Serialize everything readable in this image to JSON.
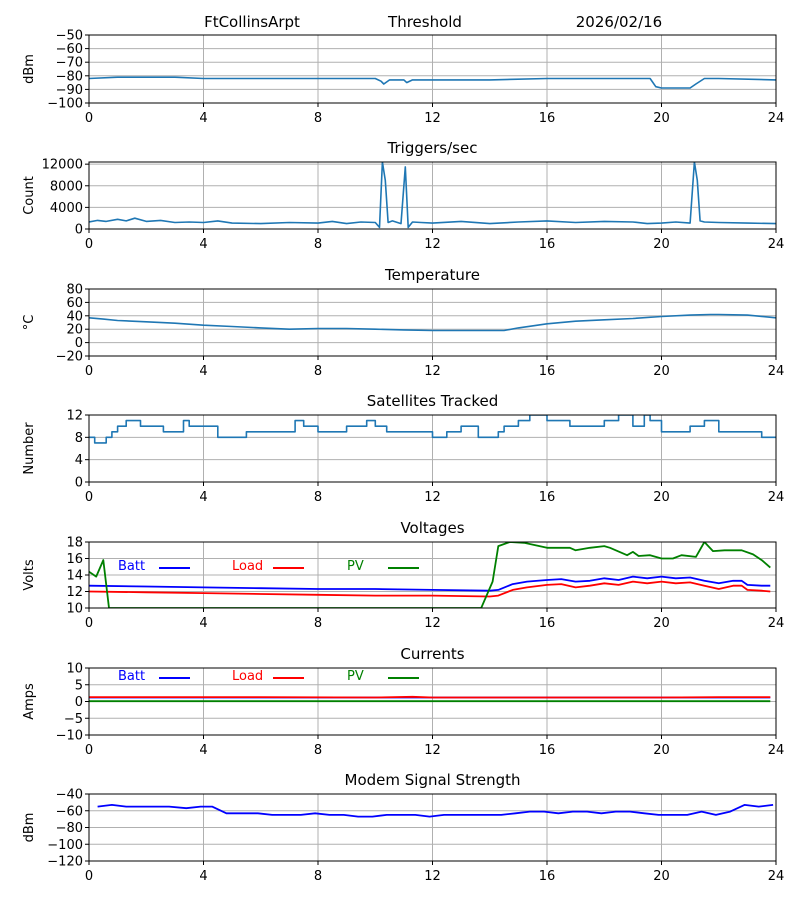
{
  "header": {
    "station": "FtCollinsArpt",
    "metric": "Threshold",
    "date": "2026/02/16"
  },
  "colors": {
    "default_line": "#1f77b4",
    "batt": "#0000ff",
    "load": "#ff0000",
    "pv": "#008000",
    "grid": "#b0b0b0"
  },
  "chart_data": [
    {
      "id": "threshold",
      "type": "line",
      "title": "",
      "ylabel": "dBm",
      "ylim": [
        -100,
        -50
      ],
      "yticks": [
        -50,
        -60,
        -70,
        -80,
        -90,
        -100
      ],
      "ytick_labels": [
        "−50",
        "−60",
        "−70",
        "−80",
        "−90",
        "−100"
      ],
      "xlim": [
        0,
        24
      ],
      "xticks": [
        0,
        4,
        8,
        12,
        16,
        20,
        24
      ],
      "xtick_labels": [
        "0",
        "4",
        "8",
        "12",
        "16",
        "20",
        "24"
      ],
      "grid": true,
      "series": [
        {
          "name": "Threshold",
          "color": "#1f77b4",
          "x": [
            0,
            1,
            2,
            3,
            4,
            6,
            8,
            10,
            10.2,
            10.3,
            10.5,
            11,
            11.1,
            11.3,
            12,
            14,
            16,
            18,
            19.6,
            19.8,
            20,
            21,
            21.2,
            21.5,
            22,
            24
          ],
          "y": [
            -82,
            -81,
            -81,
            -81,
            -82,
            -82,
            -82,
            -82,
            -84,
            -86,
            -83,
            -83,
            -85,
            -83,
            -83,
            -83,
            -82,
            -82,
            -82,
            -88,
            -89,
            -89,
            -86,
            -82,
            -82,
            -83
          ]
        }
      ]
    },
    {
      "id": "triggers",
      "type": "line",
      "title": "Triggers/sec",
      "ylabel": "Count",
      "ylim": [
        0,
        12400
      ],
      "yticks": [
        0,
        4000,
        8000,
        12000
      ],
      "ytick_labels": [
        "0",
        "4000",
        "8000",
        "12000"
      ],
      "xlim": [
        0,
        24
      ],
      "xticks": [
        0,
        4,
        8,
        12,
        16,
        20,
        24
      ],
      "xtick_labels": [
        "0",
        "4",
        "8",
        "12",
        "16",
        "20",
        "24"
      ],
      "grid": true,
      "series": [
        {
          "name": "Triggers",
          "color": "#1f77b4",
          "x": [
            0,
            0.3,
            0.6,
            1,
            1.3,
            1.6,
            2,
            2.5,
            3,
            3.5,
            4,
            4.5,
            5,
            6,
            7,
            8,
            8.5,
            9,
            9.5,
            10,
            10.15,
            10.25,
            10.35,
            10.45,
            10.6,
            10.9,
            11.05,
            11.15,
            11.3,
            11.6,
            12,
            13,
            14,
            15,
            16,
            17,
            18,
            19,
            19.5,
            20,
            20.5,
            21,
            21.15,
            21.25,
            21.35,
            21.5,
            22,
            23,
            24
          ],
          "y": [
            1300,
            1600,
            1400,
            1800,
            1500,
            2000,
            1400,
            1600,
            1200,
            1300,
            1200,
            1500,
            1100,
            1000,
            1200,
            1100,
            1400,
            1000,
            1300,
            1200,
            300,
            12400,
            9000,
            1200,
            1500,
            1000,
            11500,
            300,
            1300,
            1200,
            1100,
            1400,
            1000,
            1300,
            1500,
            1200,
            1400,
            1300,
            1000,
            1100,
            1300,
            1100,
            12400,
            9000,
            1500,
            1300,
            1200,
            1100,
            1000
          ]
        }
      ]
    },
    {
      "id": "temperature",
      "type": "line",
      "title": "Temperature",
      "ylabel": "°C",
      "ylim": [
        -20,
        80
      ],
      "yticks": [
        -20,
        0,
        20,
        40,
        60,
        80
      ],
      "ytick_labels": [
        "−20",
        "0",
        "20",
        "40",
        "60",
        "80"
      ],
      "xlim": [
        0,
        24
      ],
      "xticks": [
        0,
        4,
        8,
        12,
        16,
        20,
        24
      ],
      "xtick_labels": [
        "0",
        "4",
        "8",
        "12",
        "16",
        "20",
        "24"
      ],
      "grid": true,
      "series": [
        {
          "name": "Temperature",
          "color": "#1f77b4",
          "x": [
            0,
            0.5,
            1,
            2,
            3,
            4,
            5,
            6,
            7,
            8,
            9,
            10,
            11,
            12,
            13,
            14,
            14.5,
            15,
            16,
            17,
            18,
            19,
            20,
            21,
            21.7,
            22,
            23,
            24
          ],
          "y": [
            37,
            35,
            33,
            31,
            29,
            26,
            24,
            22,
            20,
            21,
            21,
            20,
            19,
            18,
            18,
            18,
            18,
            22,
            28,
            32,
            34,
            36,
            39,
            41,
            42,
            42,
            41,
            37
          ]
        }
      ]
    },
    {
      "id": "satellites",
      "type": "line",
      "title": "Satellites Tracked",
      "ylabel": "Number",
      "ylim": [
        0,
        12
      ],
      "yticks": [
        0,
        4,
        8,
        12
      ],
      "ytick_labels": [
        "0",
        "4",
        "8",
        "12"
      ],
      "xlim": [
        0,
        24
      ],
      "xticks": [
        0,
        4,
        8,
        12,
        16,
        20,
        24
      ],
      "xtick_labels": [
        "0",
        "4",
        "8",
        "12",
        "16",
        "20",
        "24"
      ],
      "grid": true,
      "series": [
        {
          "name": "Satellites",
          "color": "#1f77b4",
          "step": true,
          "x": [
            0,
            0.2,
            0.6,
            0.8,
            1,
            1.3,
            1.8,
            2.6,
            3.3,
            3.5,
            4.5,
            5.5,
            6,
            7.2,
            7.5,
            8,
            9,
            9.7,
            10,
            10.4,
            11,
            12,
            12.5,
            13,
            13.6,
            14.3,
            14.5,
            15,
            15.4,
            16,
            16.8,
            17,
            18,
            18.5,
            19,
            19.4,
            19.6,
            20,
            21,
            21.5,
            22,
            23.5,
            24
          ],
          "y": [
            8,
            7,
            8,
            9,
            10,
            11,
            10,
            9,
            11,
            10,
            8,
            9,
            9,
            11,
            10,
            9,
            10,
            11,
            10,
            9,
            9,
            8,
            9,
            10,
            8,
            9,
            10,
            11,
            12,
            11,
            10,
            10,
            11,
            12,
            10,
            12,
            11,
            9,
            10,
            11,
            9,
            8,
            8
          ]
        }
      ]
    },
    {
      "id": "voltages",
      "type": "line",
      "title": "Voltages",
      "ylabel": "Volts",
      "ylim": [
        10,
        18
      ],
      "yticks": [
        10,
        12,
        14,
        16,
        18
      ],
      "ytick_labels": [
        "10",
        "12",
        "14",
        "16",
        "18"
      ],
      "xlim": [
        0,
        24
      ],
      "xticks": [
        0,
        4,
        8,
        12,
        16,
        20,
        24
      ],
      "xtick_labels": [
        "0",
        "4",
        "8",
        "12",
        "16",
        "20",
        "24"
      ],
      "grid": true,
      "legend": {
        "placement": "top-left",
        "entries": [
          "Batt",
          "Load",
          "PV"
        ]
      },
      "series": [
        {
          "name": "Batt",
          "color": "#0000ff",
          "x": [
            0,
            2,
            4,
            6,
            8,
            10,
            12,
            14,
            14.3,
            14.8,
            15.3,
            16,
            16.5,
            17,
            17.5,
            18,
            18.5,
            19,
            19.5,
            20,
            20.5,
            21,
            21.5,
            22,
            22.5,
            22.8,
            23,
            23.5,
            23.8
          ],
          "y": [
            12.7,
            12.6,
            12.5,
            12.4,
            12.3,
            12.3,
            12.2,
            12.1,
            12.2,
            12.9,
            13.2,
            13.4,
            13.5,
            13.2,
            13.3,
            13.6,
            13.4,
            13.8,
            13.6,
            13.8,
            13.6,
            13.7,
            13.3,
            13.0,
            13.3,
            13.3,
            12.8,
            12.7,
            12.7
          ]
        },
        {
          "name": "Load",
          "color": "#ff0000",
          "x": [
            0,
            2,
            4,
            6,
            8,
            10,
            12,
            14,
            14.3,
            14.8,
            15.3,
            16,
            16.5,
            17,
            17.5,
            18,
            18.5,
            19,
            19.5,
            20,
            20.5,
            21,
            21.5,
            22,
            22.5,
            22.8,
            23,
            23.5,
            23.8
          ],
          "y": [
            12.0,
            11.9,
            11.8,
            11.7,
            11.6,
            11.5,
            11.5,
            11.4,
            11.5,
            12.2,
            12.5,
            12.8,
            12.9,
            12.5,
            12.7,
            13.0,
            12.8,
            13.2,
            13.0,
            13.2,
            13.0,
            13.1,
            12.7,
            12.3,
            12.7,
            12.7,
            12.2,
            12.1,
            12.0
          ]
        },
        {
          "name": "PV",
          "color": "#008000",
          "x": [
            0,
            0.25,
            0.5,
            0.7,
            13.7,
            14.1,
            14.3,
            14.7,
            15.2,
            15.6,
            16,
            16.5,
            16.8,
            17,
            17.5,
            18,
            18.2,
            18.8,
            19,
            19.2,
            19.6,
            20,
            20.4,
            20.7,
            21.2,
            21.5,
            21.8,
            22.2,
            22.8,
            23.2,
            23.5,
            23.8
          ],
          "y": [
            14.4,
            13.8,
            15.8,
            10.0,
            10.0,
            13.2,
            17.5,
            18.0,
            17.9,
            17.6,
            17.3,
            17.3,
            17.3,
            17.0,
            17.3,
            17.5,
            17.3,
            16.4,
            16.8,
            16.3,
            16.4,
            16.0,
            16.0,
            16.4,
            16.2,
            18.0,
            16.9,
            17.0,
            17.0,
            16.5,
            15.8,
            14.9
          ]
        }
      ]
    },
    {
      "id": "currents",
      "type": "line",
      "title": "Currents",
      "ylabel": "Amps",
      "ylim": [
        -10,
        10
      ],
      "yticks": [
        -10,
        -5,
        0,
        5,
        10
      ],
      "ytick_labels": [
        "−10",
        "−5",
        "0",
        "5",
        "10"
      ],
      "xlim": [
        0,
        24
      ],
      "xticks": [
        0,
        4,
        8,
        12,
        16,
        20,
        24
      ],
      "xtick_labels": [
        "0",
        "4",
        "8",
        "12",
        "16",
        "20",
        "24"
      ],
      "grid": true,
      "legend": {
        "placement": "top-left",
        "entries": [
          "Batt",
          "Load",
          "PV"
        ]
      },
      "series": [
        {
          "name": "Batt",
          "color": "#0000ff",
          "x": [
            0,
            23.8
          ],
          "y": [
            1.2,
            1.2
          ]
        },
        {
          "name": "Load",
          "color": "#ff0000",
          "x": [
            0,
            6,
            10,
            11.3,
            12,
            16,
            20,
            22,
            23.8
          ],
          "y": [
            1.3,
            1.3,
            1.2,
            1.4,
            1.2,
            1.2,
            1.2,
            1.3,
            1.3
          ]
        },
        {
          "name": "PV",
          "color": "#008000",
          "x": [
            0,
            23.8
          ],
          "y": [
            0.1,
            0.1
          ]
        }
      ]
    },
    {
      "id": "modem",
      "type": "line",
      "title": "Modem Signal Strength",
      "ylabel": "dBm",
      "ylim": [
        -120,
        -40
      ],
      "yticks": [
        -120,
        -100,
        -80,
        -60,
        -40
      ],
      "ytick_labels": [
        "−120",
        "−100",
        "−80",
        "−60",
        "−40"
      ],
      "xlim": [
        0,
        24
      ],
      "xticks": [
        0,
        4,
        8,
        12,
        16,
        20,
        24
      ],
      "xtick_labels": [
        "0",
        "4",
        "8",
        "12",
        "16",
        "20",
        "24"
      ],
      "grid": true,
      "series": [
        {
          "name": "Modem",
          "color": "#0000ff",
          "x": [
            0.3,
            0.8,
            1.3,
            2.3,
            2.8,
            3.4,
            3.9,
            4.3,
            4.8,
            5.3,
            5.9,
            6.4,
            6.9,
            7.4,
            7.9,
            8.4,
            8.9,
            9.4,
            9.9,
            10.4,
            10.9,
            11.4,
            11.9,
            12.4,
            12.9,
            13.4,
            13.9,
            14.4,
            14.9,
            15.4,
            15.9,
            16.4,
            16.9,
            17.4,
            17.9,
            18.4,
            18.9,
            19.4,
            19.9,
            20.4,
            20.9,
            21.4,
            21.9,
            22.4,
            22.9,
            23.4,
            23.9
          ],
          "y": [
            -55,
            -53,
            -55,
            -55,
            -55,
            -57,
            -55,
            -55,
            -63,
            -63,
            -63,
            -65,
            -65,
            -65,
            -63,
            -65,
            -65,
            -67,
            -67,
            -65,
            -65,
            -65,
            -67,
            -65,
            -65,
            -65,
            -65,
            -65,
            -63,
            -61,
            -61,
            -63,
            -61,
            -61,
            -63,
            -61,
            -61,
            -63,
            -65,
            -65,
            -65,
            -61,
            -65,
            -61,
            -53,
            -55,
            -53
          ]
        }
      ]
    }
  ]
}
